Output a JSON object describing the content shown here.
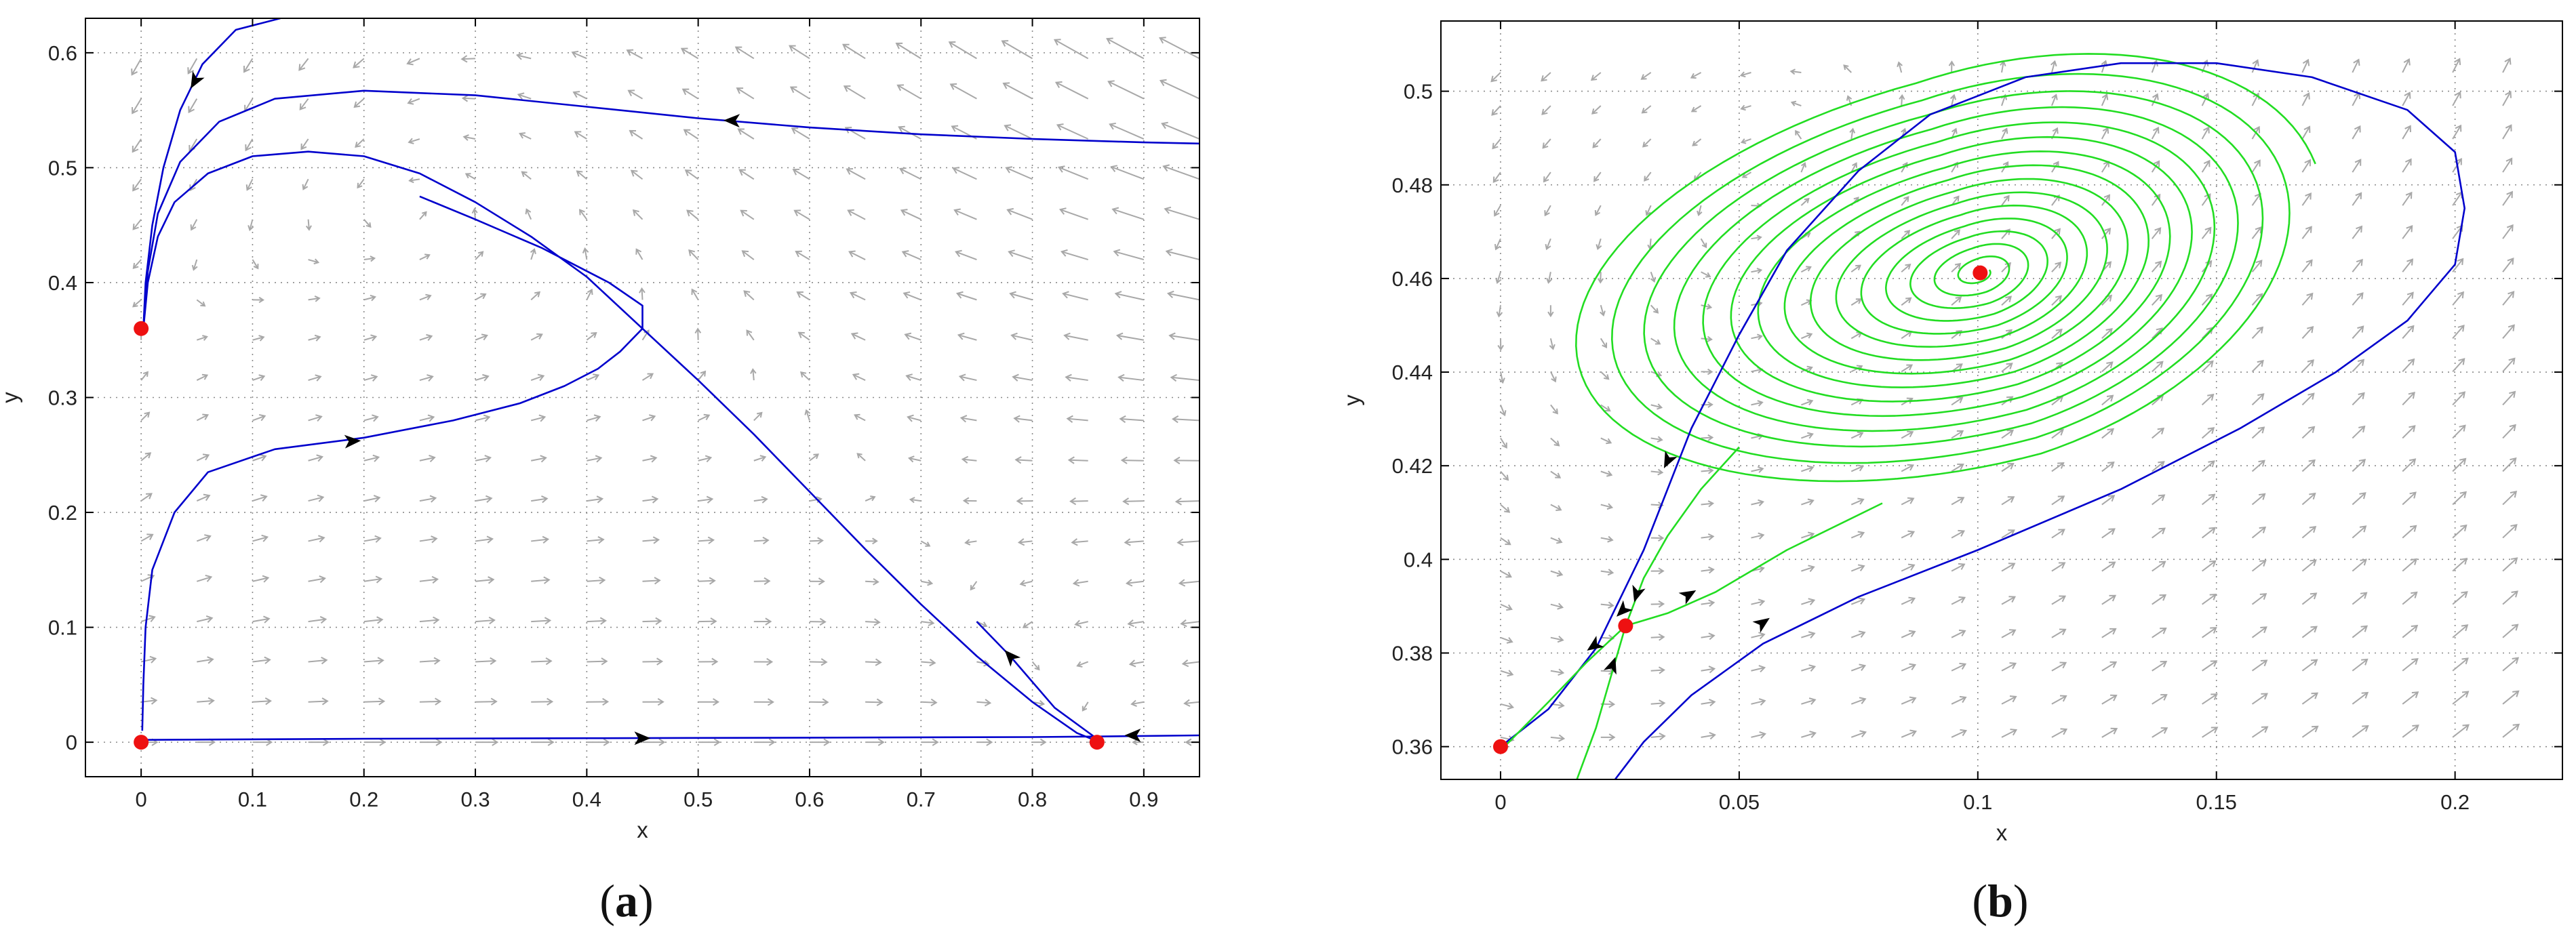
{
  "chart_data": [
    {
      "type": "line",
      "panel": "(a)",
      "panel_parts": [
        "(",
        "a",
        ")"
      ],
      "xlabel": "x",
      "ylabel": "y",
      "xlim": [
        -0.05,
        0.95
      ],
      "ylim": [
        -0.03,
        0.63
      ],
      "xticks": [
        0,
        0.1,
        0.2,
        0.3,
        0.4,
        0.5,
        0.6,
        0.7,
        0.8,
        0.9
      ],
      "xtick_labels": [
        "0",
        "0.1",
        "0.2",
        "0.3",
        "0.4",
        "0.5",
        "0.6",
        "0.7",
        "0.8",
        "0.9"
      ],
      "yticks": [
        0,
        0.1,
        0.2,
        0.3,
        0.4,
        0.5,
        0.6
      ],
      "ytick_labels": [
        "0",
        "0.1",
        "0.2",
        "0.3",
        "0.4",
        "0.5",
        "0.6"
      ],
      "grid": true,
      "colors": {
        "trajectory": "#0000cc",
        "equilibrium": "#ee1111",
        "field": "#a8a8a8"
      },
      "vector_field": {
        "x_from": 0.0,
        "x_to": 0.95,
        "x_step": 0.05,
        "y_from": 0.0,
        "y_to": 0.62,
        "y_step": 0.035,
        "model": "predator-prey"
      },
      "equilibria": [
        {
          "x": 0,
          "y": 0
        },
        {
          "x": 0,
          "y": 0.36
        },
        {
          "x": 0.858,
          "y": 0
        }
      ],
      "trajectories": [
        {
          "color": "trajectory",
          "points": [
            [
              0.002,
              0.36
            ],
            [
              0.004,
              0.4
            ],
            [
              0.01,
              0.45
            ],
            [
              0.02,
              0.5
            ],
            [
              0.035,
              0.55
            ],
            [
              0.055,
              0.59
            ],
            [
              0.085,
              0.62
            ],
            [
              0.125,
              0.63
            ]
          ],
          "arrows": [
            {
              "x": 0.048,
              "y": 0.575,
              "dx": -1,
              "dy": -1.8
            }
          ]
        },
        {
          "color": "trajectory",
          "points": [
            [
              0.002,
              0.36
            ],
            [
              0.006,
              0.41
            ],
            [
              0.015,
              0.46
            ],
            [
              0.035,
              0.505
            ],
            [
              0.07,
              0.54
            ],
            [
              0.12,
              0.56
            ],
            [
              0.2,
              0.567
            ],
            [
              0.3,
              0.563
            ],
            [
              0.4,
              0.553
            ],
            [
              0.5,
              0.543
            ],
            [
              0.6,
              0.535
            ],
            [
              0.7,
              0.529
            ],
            [
              0.8,
              0.525
            ],
            [
              0.9,
              0.522
            ],
            [
              0.95,
              0.521
            ]
          ],
          "arrows": [
            {
              "x": 0.53,
              "y": 0.541,
              "dx": -1,
              "dy": 0.02
            }
          ]
        },
        {
          "color": "trajectory",
          "points": [
            [
              0.002,
              0.36
            ],
            [
              0.006,
              0.4
            ],
            [
              0.015,
              0.44
            ],
            [
              0.03,
              0.47
            ],
            [
              0.06,
              0.495
            ],
            [
              0.1,
              0.51
            ],
            [
              0.15,
              0.514
            ],
            [
              0.2,
              0.51
            ],
            [
              0.25,
              0.495
            ],
            [
              0.3,
              0.47
            ],
            [
              0.35,
              0.44
            ],
            [
              0.4,
              0.405
            ],
            [
              0.45,
              0.36
            ],
            [
              0.5,
              0.315
            ],
            [
              0.55,
              0.268
            ],
            [
              0.6,
              0.218
            ],
            [
              0.65,
              0.168
            ],
            [
              0.7,
              0.12
            ],
            [
              0.75,
              0.075
            ],
            [
              0.8,
              0.035
            ],
            [
              0.84,
              0.008
            ],
            [
              0.858,
              0.001
            ]
          ],
          "arrows": []
        },
        {
          "color": "trajectory",
          "points": [
            [
              0.001,
              0.01
            ],
            [
              0.002,
              0.05
            ],
            [
              0.004,
              0.1
            ],
            [
              0.01,
              0.15
            ],
            [
              0.03,
              0.2
            ],
            [
              0.06,
              0.235
            ],
            [
              0.12,
              0.255
            ],
            [
              0.2,
              0.265
            ],
            [
              0.28,
              0.28
            ],
            [
              0.34,
              0.295
            ],
            [
              0.38,
              0.31
            ],
            [
              0.41,
              0.325
            ],
            [
              0.43,
              0.34
            ],
            [
              0.45,
              0.36
            ],
            [
              0.45,
              0.38
            ],
            [
              0.42,
              0.4
            ],
            [
              0.36,
              0.43
            ],
            [
              0.3,
              0.455
            ],
            [
              0.25,
              0.475
            ]
          ],
          "arrows": [
            {
              "x": 0.19,
              "y": 0.262,
              "dx": 1,
              "dy": 0.06
            }
          ]
        },
        {
          "color": "trajectory",
          "points": [
            [
              0.0,
              0.002
            ],
            [
              0.2,
              0.003
            ],
            [
              0.4,
              0.0035
            ],
            [
              0.6,
              0.004
            ],
            [
              0.8,
              0.0045
            ],
            [
              0.858,
              0.005
            ],
            [
              0.95,
              0.006
            ]
          ],
          "arrows": [
            {
              "x": 0.45,
              "y": 0.0035,
              "dx": 1,
              "dy": 0
            },
            {
              "x": 0.89,
              "y": 0.006,
              "dx": -1,
              "dy": 0
            }
          ]
        },
        {
          "color": "trajectory",
          "points": [
            [
              0.858,
              0.003
            ],
            [
              0.82,
              0.03
            ],
            [
              0.78,
              0.075
            ],
            [
              0.75,
              0.105
            ]
          ],
          "arrows": [
            {
              "x": 0.78,
              "y": 0.075,
              "dx": -1,
              "dy": 1.1
            }
          ]
        }
      ]
    },
    {
      "type": "line",
      "panel": "(b)",
      "panel_parts": [
        "(",
        "b",
        ")"
      ],
      "xlabel": "x",
      "ylabel": "y",
      "xlim": [
        -0.0125,
        0.2225
      ],
      "ylim": [
        0.353,
        0.515
      ],
      "xticks": [
        0,
        0.05,
        0.1,
        0.15,
        0.2
      ],
      "xtick_labels": [
        "0",
        "0.05",
        "0.1",
        "0.15",
        "0.2"
      ],
      "yticks": [
        0.36,
        0.38,
        0.4,
        0.42,
        0.44,
        0.46,
        0.48,
        0.5
      ],
      "ytick_labels": [
        "0.36",
        "0.38",
        "0.4",
        "0.42",
        "0.44",
        "0.46",
        "0.48",
        "0.5"
      ],
      "grid": true,
      "colors": {
        "trajectory": "#0000cc",
        "spiral": "#22dd22",
        "equilibrium": "#ee1111",
        "field": "#a8a8a8"
      },
      "vector_field": {
        "x_from": 0.0,
        "x_to": 0.215,
        "x_step": 0.0105,
        "y_from": 0.362,
        "y_to": 0.51,
        "y_step": 0.0071,
        "model": "local"
      },
      "equilibria": [
        {
          "x": 0,
          "y": 0.36
        },
        {
          "x": 0.0262,
          "y": 0.3858
        },
        {
          "x": 0.1005,
          "y": 0.4612
        }
      ],
      "spiral": {
        "cx": 0.1005,
        "cy": 0.4612,
        "turns": 15,
        "a_max": 0.074,
        "b_max": 0.044,
        "tilt": 0.32,
        "a_min": 0.002,
        "b_min": 0.0012
      },
      "trajectories": [
        {
          "color": "trajectory",
          "points": [
            [
              0.0,
              0.36
            ],
            [
              0.01,
              0.368
            ],
            [
              0.02,
              0.381
            ],
            [
              0.03,
              0.402
            ],
            [
              0.04,
              0.428
            ],
            [
              0.05,
              0.448
            ],
            [
              0.06,
              0.466
            ],
            [
              0.075,
              0.483
            ],
            [
              0.09,
              0.495
            ],
            [
              0.11,
              0.503
            ],
            [
              0.13,
              0.506
            ],
            [
              0.15,
              0.506
            ],
            [
              0.17,
              0.503
            ],
            [
              0.19,
              0.496
            ],
            [
              0.2,
              0.487
            ],
            [
              0.202,
              0.475
            ],
            [
              0.2,
              0.463
            ],
            [
              0.19,
              0.451
            ],
            [
              0.175,
              0.44
            ],
            [
              0.155,
              0.428
            ],
            [
              0.13,
              0.415
            ],
            [
              0.1,
              0.402
            ],
            [
              0.075,
              0.392
            ],
            [
              0.055,
              0.382
            ],
            [
              0.04,
              0.371
            ],
            [
              0.03,
              0.361
            ],
            [
              0.024,
              0.353
            ]
          ],
          "arrows": [
            {
              "x": 0.035,
              "y": 0.421,
              "dx": -0.5,
              "dy": -1
            },
            {
              "x": 0.055,
              "y": 0.3865,
              "dx": 1,
              "dy": 0.7
            }
          ]
        },
        {
          "color": "spiral",
          "points": [
            [
              0.016,
              0.353
            ],
            [
              0.02,
              0.364
            ],
            [
              0.0262,
              0.3858
            ],
            [
              0.03,
              0.396
            ],
            [
              0.035,
              0.405
            ],
            [
              0.042,
              0.415
            ],
            [
              0.05,
              0.424
            ]
          ],
          "arrows": [
            {
              "x": 0.0285,
              "y": 0.3925,
              "dx": -0.3,
              "dy": -1
            },
            {
              "x": 0.0235,
              "y": 0.3775,
              "dx": 0.35,
              "dy": 1
            }
          ]
        },
        {
          "color": "spiral",
          "points": [
            [
              0.001,
              0.3602
            ],
            [
              0.01,
              0.3695
            ],
            [
              0.018,
              0.378
            ],
            [
              0.0262,
              0.3858
            ],
            [
              0.035,
              0.3885
            ],
            [
              0.045,
              0.393
            ],
            [
              0.06,
              0.402
            ],
            [
              0.08,
              0.412
            ]
          ],
          "arrows": [
            {
              "x": 0.0195,
              "y": 0.3815,
              "dx": -1,
              "dy": -0.7
            },
            {
              "x": 0.0255,
              "y": 0.389,
              "dx": -1,
              "dy": -1
            },
            {
              "x": 0.0395,
              "y": 0.3925,
              "dx": 1,
              "dy": 0.6
            }
          ]
        }
      ]
    }
  ]
}
